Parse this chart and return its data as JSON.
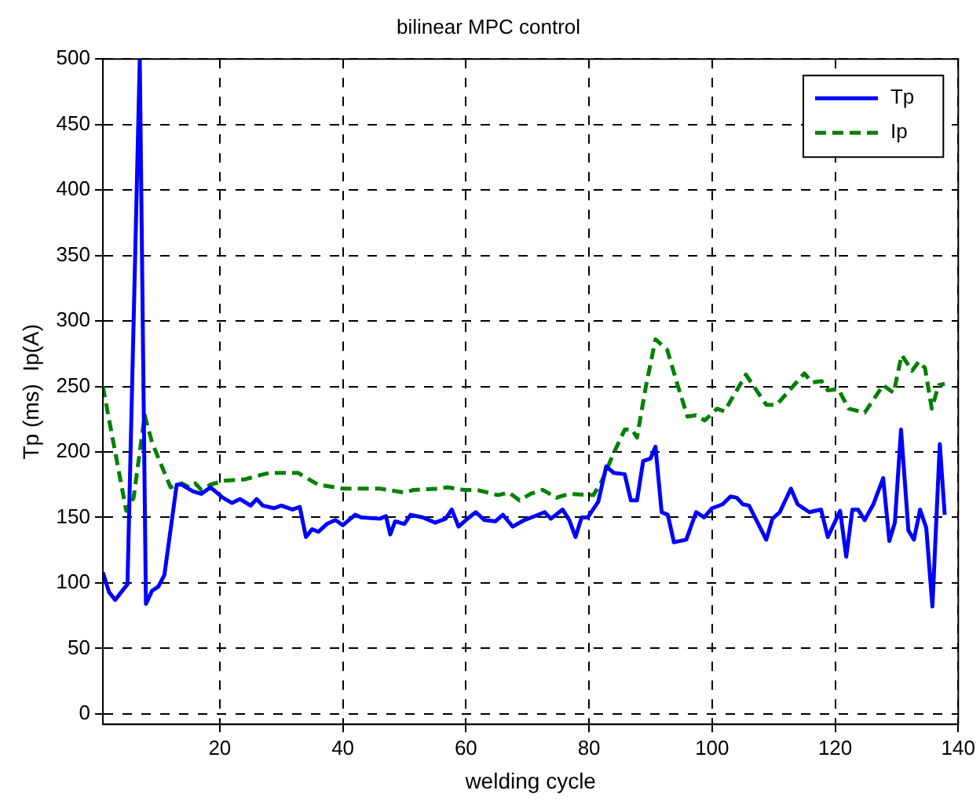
{
  "chart_data": {
    "type": "line",
    "title": "bilinear MPC control",
    "xlabel": "welding cycle",
    "ylabel": "Tp (ms)  Ip(A)",
    "xlim": [
      1,
      140
    ],
    "ylim": [
      -8,
      500
    ],
    "xticks": [
      20,
      40,
      60,
      80,
      100,
      120,
      140
    ],
    "yticks": [
      0,
      50,
      100,
      150,
      200,
      250,
      300,
      350,
      400,
      450,
      500
    ],
    "grid": true,
    "legend": "top right",
    "marker": "none",
    "series": [
      {
        "name": "Tp",
        "color": "#0000ff",
        "line_style": "solid",
        "x": [
          1,
          2,
          3,
          5,
          7,
          8,
          9,
          10,
          11,
          13,
          13.8,
          15.6,
          17,
          18.5,
          20.5,
          22,
          23.3,
          25,
          26,
          27,
          28.8,
          30,
          31.8,
          33,
          34,
          35,
          36,
          37.4,
          38.8,
          40,
          42,
          43,
          46,
          47,
          47.7,
          48.5,
          50,
          51,
          53,
          55,
          56.7,
          57.7,
          58.8,
          60,
          61.6,
          63,
          64.8,
          66,
          67.6,
          69.5,
          71.2,
          72.8,
          73.8,
          75.7,
          76.8,
          77.8,
          78.8,
          79.8,
          81.5,
          82.8,
          84,
          85.8,
          86.8,
          87.8,
          88.8,
          90,
          90.8,
          91.8,
          92.8,
          93.8,
          95.8,
          97.4,
          98.7,
          100,
          101.7,
          103,
          104,
          105,
          106,
          108.8,
          109.8,
          111,
          112.8,
          113.9,
          115.8,
          117.7,
          118.8,
          120.8,
          121.8,
          122.8,
          123.7,
          124.8,
          126.2,
          127.8,
          128.8,
          129.7,
          130.7,
          131.9,
          132.8,
          133.8,
          134.8,
          135.8,
          137,
          137.8
        ],
        "values": [
          108,
          93,
          87,
          99,
          500,
          84,
          94,
          97,
          106,
          175,
          175,
          170,
          168,
          173,
          165,
          161,
          164,
          159,
          164,
          159,
          157,
          159,
          156,
          158,
          135,
          141,
          139,
          145,
          148,
          144,
          152,
          150,
          149,
          151,
          137,
          147,
          145,
          152,
          150,
          146,
          149,
          156,
          143,
          148,
          154,
          148,
          147,
          152,
          143,
          148,
          151,
          154,
          149,
          156,
          148,
          135,
          150,
          150,
          162,
          189,
          184,
          183,
          163,
          163,
          193,
          195,
          204,
          154,
          152,
          131,
          133,
          154,
          150,
          157,
          160,
          166,
          165,
          160,
          159,
          133,
          149,
          154,
          172,
          160,
          154,
          156,
          135,
          155,
          120,
          156,
          156,
          148,
          160,
          180,
          132,
          146,
          217,
          140,
          133,
          156,
          142,
          82,
          206,
          152
        ]
      },
      {
        "name": "Ip",
        "color": "#008000",
        "line_style": "dashed",
        "x": [
          1,
          4.8,
          6,
          7.8,
          9,
          12,
          13.8,
          15,
          16,
          17,
          18.5,
          20.7,
          24,
          28,
          32.7,
          36,
          40,
          46,
          50,
          51.5,
          55.8,
          57,
          59.7,
          61.8,
          65.2,
          67,
          68.7,
          70.5,
          72.5,
          74.7,
          76.7,
          80.7,
          82,
          84,
          85.8,
          87,
          87.8,
          89.2,
          90.8,
          92.7,
          94.4,
          96,
          97.4,
          98.8,
          100.8,
          102,
          105.5,
          108.8,
          110.5,
          115,
          116.2,
          117.8,
          118.8,
          120.5,
          122.2,
          124.8,
          127.8,
          129.5,
          130.8,
          132.5,
          133.6,
          134.6,
          135.7,
          136.8,
          137.8
        ],
        "values": [
          250,
          155,
          165,
          228,
          207,
          173,
          176,
          173,
          176,
          171,
          175,
          178,
          179,
          184,
          184,
          175,
          172,
          172,
          169,
          171,
          172,
          173,
          171,
          171,
          167,
          169,
          163,
          168,
          171,
          165,
          168,
          167,
          177,
          199,
          217,
          217,
          211,
          249,
          286,
          278,
          251,
          227,
          228,
          224,
          233,
          231,
          259,
          236,
          236,
          260,
          253,
          254,
          247,
          248,
          233,
          230,
          251,
          245,
          274,
          262,
          269,
          264,
          233,
          251,
          252
        ]
      }
    ]
  }
}
